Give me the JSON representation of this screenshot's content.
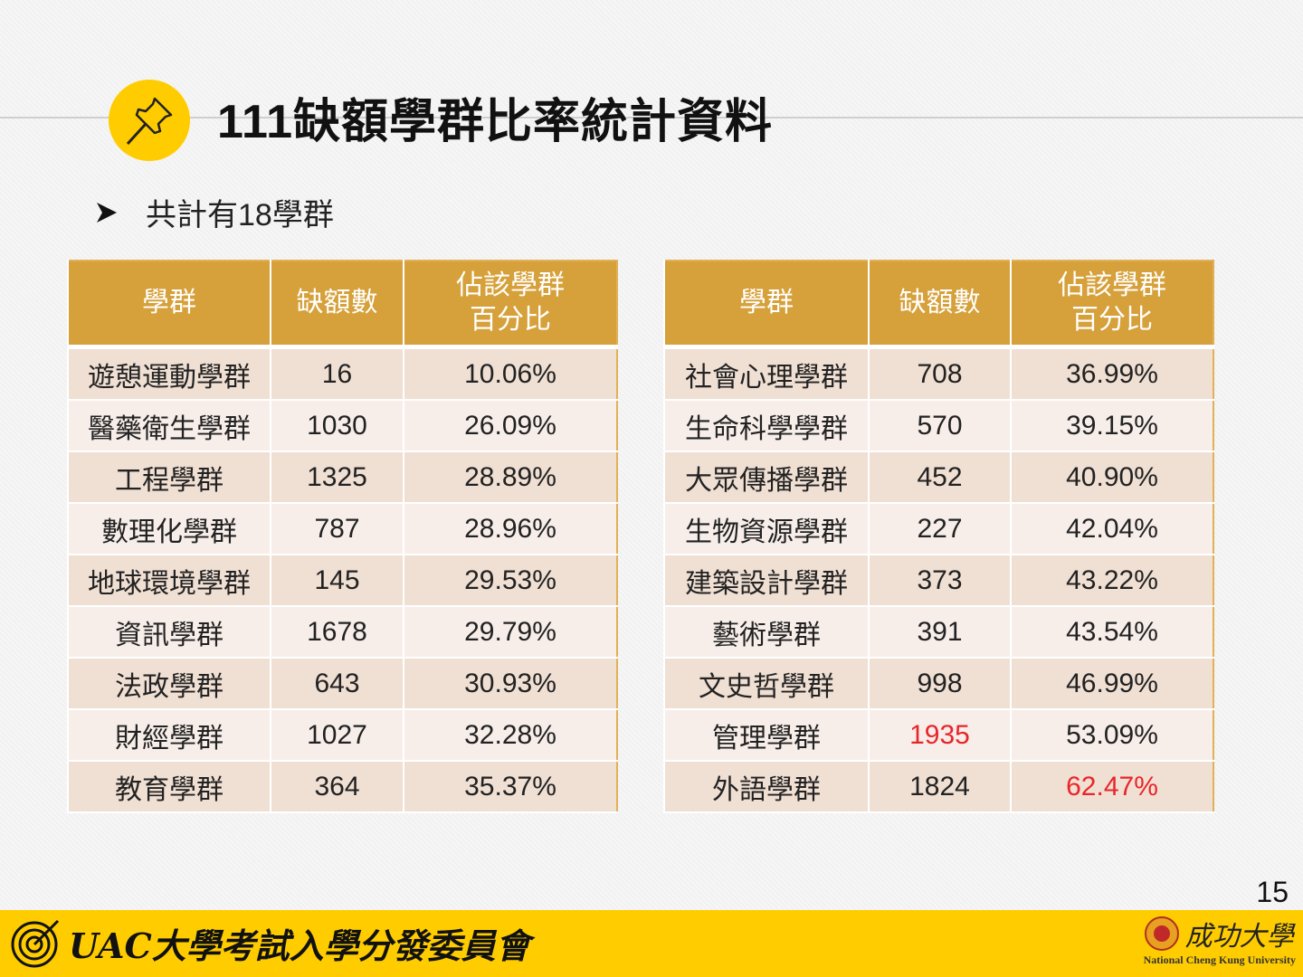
{
  "title": "111缺額學群比率統計資料",
  "bullet": "共計有18學群",
  "headers": [
    "學群",
    "缺額數",
    "佔該學群\n百分比"
  ],
  "header_pct_line1": "佔該學群",
  "header_pct_line2": "百分比",
  "left_table": [
    {
      "group": "遊憩運動學群",
      "vacancies": "16",
      "percent": "10.06%"
    },
    {
      "group": "醫藥衛生學群",
      "vacancies": "1030",
      "percent": "26.09%"
    },
    {
      "group": "工程學群",
      "vacancies": "1325",
      "percent": "28.89%"
    },
    {
      "group": "數理化學群",
      "vacancies": "787",
      "percent": "28.96%"
    },
    {
      "group": "地球環境學群",
      "vacancies": "145",
      "percent": "29.53%"
    },
    {
      "group": "資訊學群",
      "vacancies": "1678",
      "percent": "29.79%"
    },
    {
      "group": "法政學群",
      "vacancies": "643",
      "percent": "30.93%"
    },
    {
      "group": "財經學群",
      "vacancies": "1027",
      "percent": "32.28%"
    },
    {
      "group": "教育學群",
      "vacancies": "364",
      "percent": "35.37%"
    }
  ],
  "right_table": [
    {
      "group": "社會心理學群",
      "vacancies": "708",
      "percent": "36.99%"
    },
    {
      "group": "生命科學學群",
      "vacancies": "570",
      "percent": "39.15%"
    },
    {
      "group": "大眾傳播學群",
      "vacancies": "452",
      "percent": "40.90%"
    },
    {
      "group": "生物資源學群",
      "vacancies": "227",
      "percent": "42.04%"
    },
    {
      "group": "建築設計學群",
      "vacancies": "373",
      "percent": "43.22%"
    },
    {
      "group": "藝術學群",
      "vacancies": "391",
      "percent": "43.54%"
    },
    {
      "group": "文史哲學群",
      "vacancies": "998",
      "percent": "46.99%"
    },
    {
      "group": "管理學群",
      "vacancies": "1935",
      "percent": "53.09%",
      "highlight": "vacancies"
    },
    {
      "group": "外語學群",
      "vacancies": "1824",
      "percent": "62.47%",
      "highlight": "percent"
    }
  ],
  "page_number": "15",
  "footer": {
    "left_logo_text": "UAC大學考試入學分發委員會",
    "right_logo_zh": "成功大學",
    "right_logo_en": "National Cheng Kung University"
  },
  "colors": {
    "header": "#d6a03a",
    "accent": "#ffcc00",
    "highlight": "#e8262a"
  }
}
